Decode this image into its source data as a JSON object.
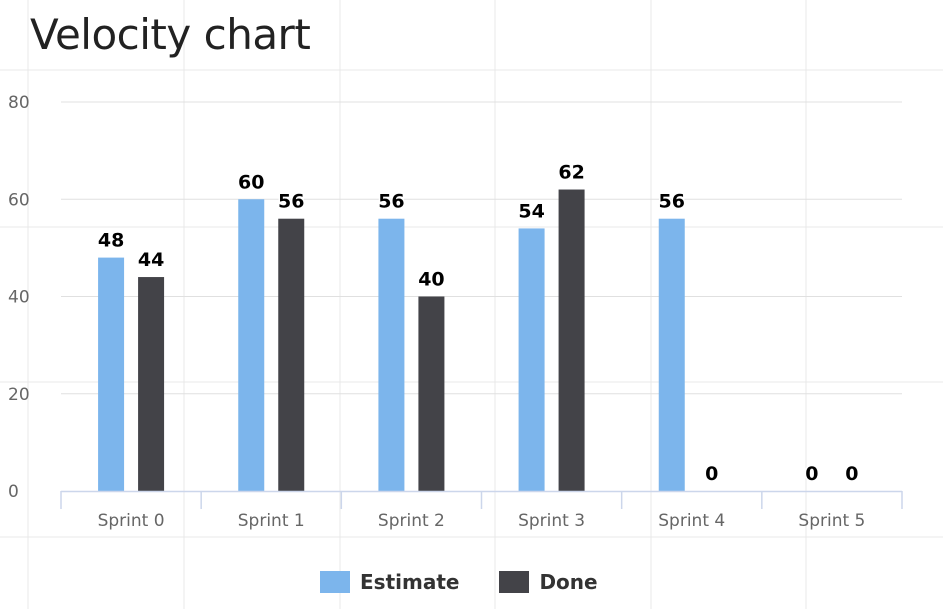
{
  "title": "Velocity chart",
  "colors": {
    "estimate": "#7cb5ec",
    "done": "#434348",
    "grid": "#e6e6e6",
    "axis": "#ccd6eb",
    "tick_text": "#666666",
    "label_text": "#000000"
  },
  "legend": {
    "estimate_label": "Estimate",
    "done_label": "Done"
  },
  "chart_data": {
    "type": "bar",
    "categories": [
      "Sprint 0",
      "Sprint 1",
      "Sprint 2",
      "Sprint 3",
      "Sprint 4",
      "Sprint 5"
    ],
    "series": [
      {
        "name": "Estimate",
        "values": [
          48,
          60,
          56,
          54,
          56,
          0
        ]
      },
      {
        "name": "Done",
        "values": [
          44,
          56,
          40,
          62,
          0,
          0
        ]
      }
    ],
    "ylim": [
      0,
      80
    ],
    "yticks": [
      0,
      20,
      40,
      60,
      80
    ],
    "grid": true,
    "data_labels": true,
    "legend_position": "bottom-center"
  }
}
